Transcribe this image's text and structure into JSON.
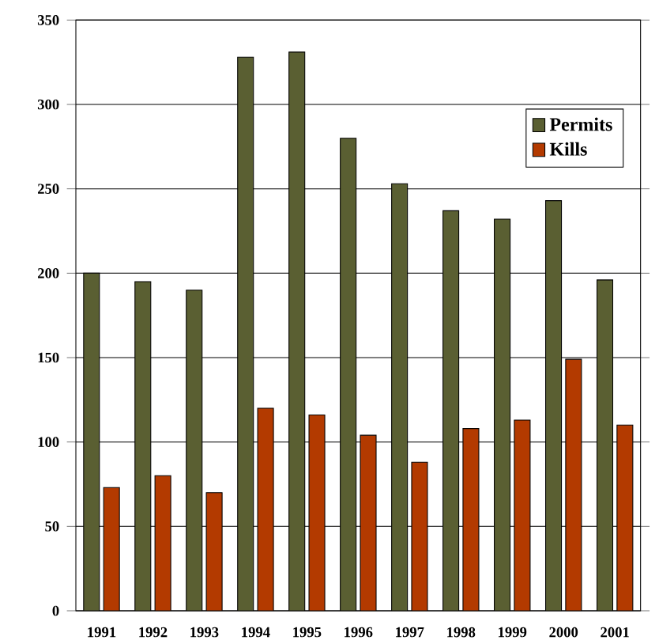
{
  "chart_data": {
    "type": "bar",
    "categories": [
      "1991",
      "1992",
      "1993",
      "1994",
      "1995",
      "1996",
      "1997",
      "1998",
      "1999",
      "2000",
      "2001"
    ],
    "series": [
      {
        "name": "Permits",
        "color": "#5a5f32",
        "values": [
          200,
          195,
          190,
          328,
          331,
          280,
          253,
          237,
          232,
          243,
          196
        ]
      },
      {
        "name": "Kills",
        "color": "#b33a00",
        "values": [
          73,
          80,
          70,
          120,
          116,
          104,
          88,
          108,
          113,
          149,
          110
        ]
      }
    ],
    "ylim": [
      0,
      350
    ],
    "yticks": [
      0,
      50,
      100,
      150,
      200,
      250,
      300,
      350
    ],
    "grid": "y",
    "legend": "top right"
  }
}
